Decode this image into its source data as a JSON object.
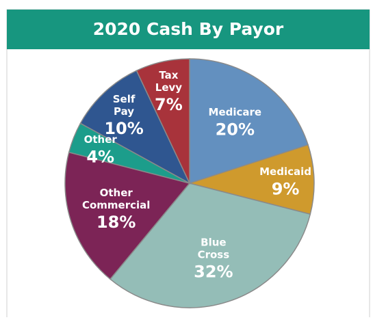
{
  "chart_data": {
    "type": "pie",
    "title": "2020 Cash By Payor",
    "categories": [
      "Medicare",
      "Medicaid",
      "Blue Cross",
      "Other Commercial",
      "Other",
      "Self Pay",
      "Tax Levy"
    ],
    "values": [
      20,
      9,
      32,
      18,
      4,
      10,
      7
    ],
    "value_labels": [
      "20%",
      "9%",
      "32%",
      "18%",
      "4%",
      "10%",
      "7%"
    ],
    "colors": [
      "#6390bf",
      "#cf9a2d",
      "#94bdb7",
      "#7c2456",
      "#1c9d8b",
      "#2f5690",
      "#a8333b"
    ]
  }
}
